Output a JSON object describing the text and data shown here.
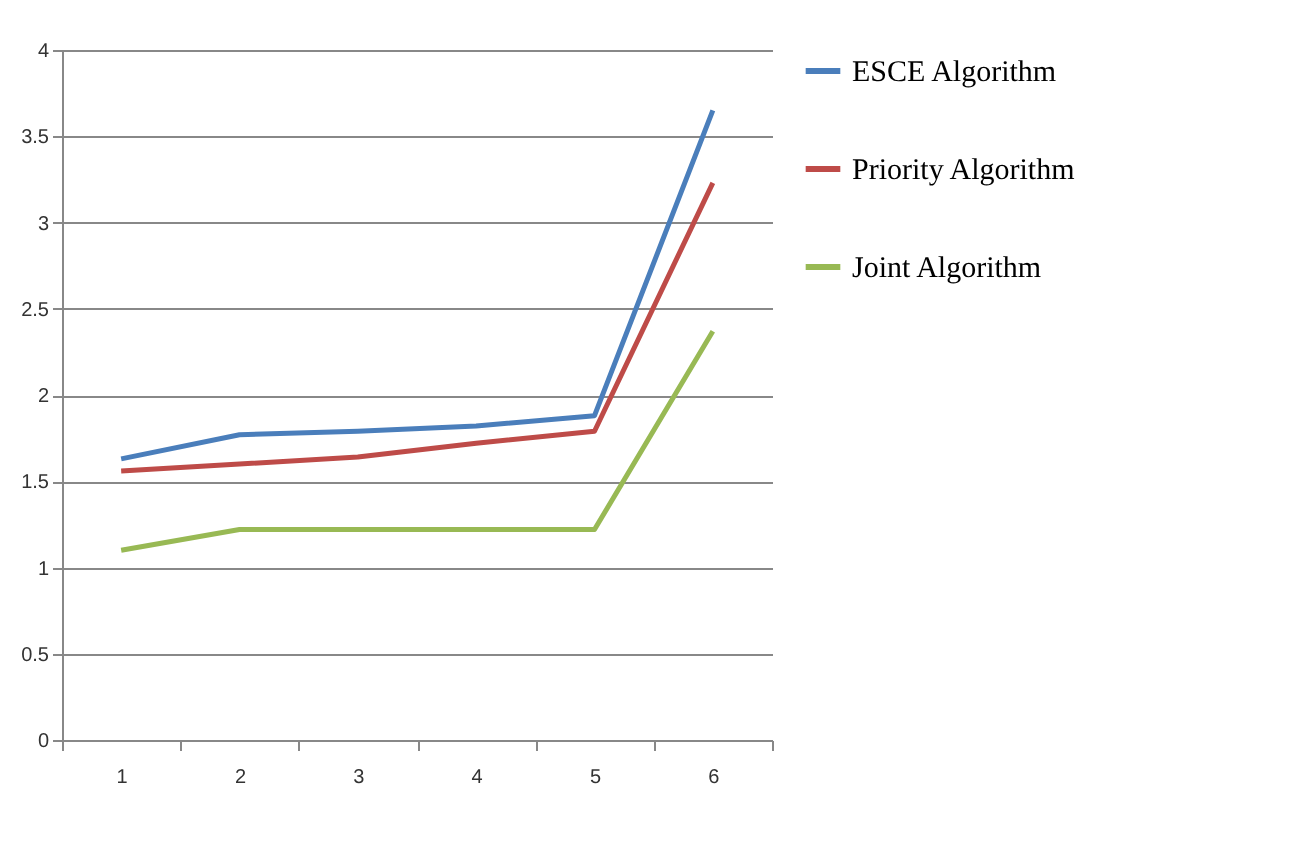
{
  "chart_data": {
    "type": "line",
    "categories": [
      "1",
      "2",
      "3",
      "4",
      "5",
      "6"
    ],
    "series": [
      {
        "name": "ESCE Algorithm",
        "color": "#4a7ebb",
        "values": [
          1.63,
          1.77,
          1.79,
          1.82,
          1.88,
          3.65
        ]
      },
      {
        "name": "Priority Algorithm",
        "color": "#be4b48",
        "values": [
          1.56,
          1.6,
          1.64,
          1.72,
          1.79,
          3.23
        ]
      },
      {
        "name": "Joint Algorithm",
        "color": "#98b954",
        "values": [
          1.1,
          1.22,
          1.22,
          1.22,
          1.22,
          2.37
        ]
      }
    ],
    "ylim": [
      0,
      4
    ],
    "yticks": [
      0,
      0.5,
      1,
      1.5,
      2,
      2.5,
      3,
      3.5,
      4
    ],
    "grid": "y",
    "legend": "right",
    "marker": "none",
    "line_style": "solid"
  }
}
